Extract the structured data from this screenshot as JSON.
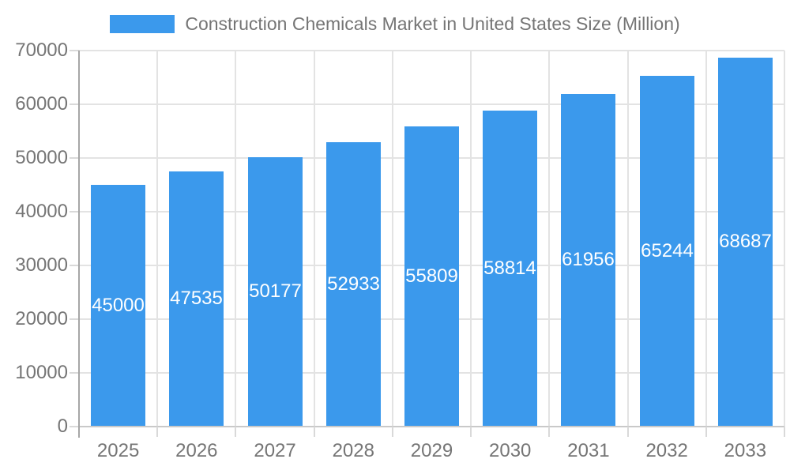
{
  "legend": {
    "label": "Construction Chemicals Market in United States Size (Million)"
  },
  "chart_data": {
    "type": "bar",
    "title": "Construction Chemicals Market in United States Size (Million)",
    "categories": [
      "2025",
      "2026",
      "2027",
      "2028",
      "2029",
      "2030",
      "2031",
      "2032",
      "2033"
    ],
    "values": [
      45000,
      47535,
      50177,
      52933,
      55809,
      58814,
      61956,
      65244,
      68687
    ],
    "xlabel": "",
    "ylabel": "",
    "ylim": [
      0,
      70000
    ],
    "ytick_step": 10000,
    "ytick_labels": [
      "0",
      "10000",
      "20000",
      "30000",
      "40000",
      "50000",
      "60000",
      "70000"
    ],
    "grid": true,
    "legend_position": "top-center",
    "value_labels": "inside-center"
  },
  "colors": {
    "bar": "#3B99EC",
    "text_gray": "#757575",
    "value_label": "#FFFFFF",
    "gridline": "#E3E3E3",
    "y_axis_line": "#A6A6A6",
    "x_axis_line": "#C9C9C9",
    "tick_mark": "#D9D9D9",
    "background": "#FFFFFF"
  }
}
